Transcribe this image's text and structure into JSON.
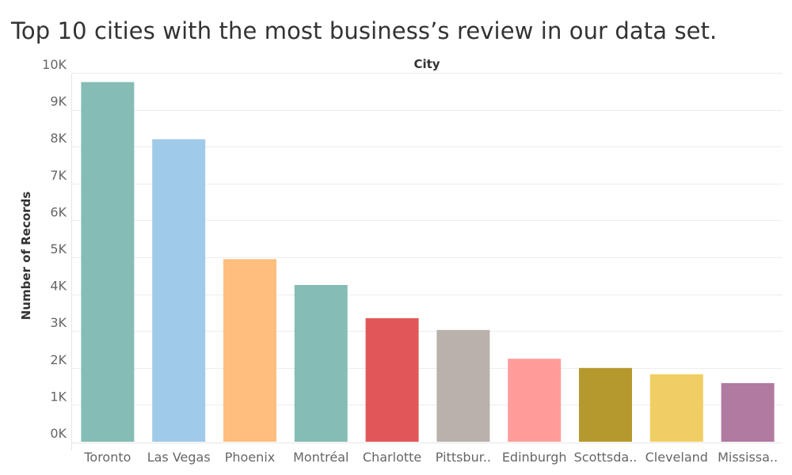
{
  "chart_data": {
    "type": "bar",
    "title": "Top 10 cities with the most business’s review in our data set.",
    "column_header": "City",
    "xlabel": "",
    "ylabel": "Number of Records",
    "categories": [
      "Toronto",
      "Las Vegas",
      "Phoenix",
      "Montréal",
      "Charlotte",
      "Pittsbur..",
      "Edinburgh",
      "Scottsda..",
      "Cleveland",
      "Mississa.."
    ],
    "values": [
      9750,
      8200,
      4950,
      4250,
      3350,
      3030,
      2250,
      2000,
      1830,
      1590
    ],
    "colors": [
      "#86bcb6",
      "#a0cbe8",
      "#ffbe7d",
      "#86bcb6",
      "#e15759",
      "#bab0ac",
      "#ff9d9a",
      "#b6992d",
      "#f1ce63",
      "#b07aa1"
    ],
    "yticks": [
      0,
      1000,
      2000,
      3000,
      4000,
      5000,
      6000,
      7000,
      8000,
      9000,
      10000
    ],
    "ytick_labels": [
      "0K",
      "1K",
      "2K",
      "3K",
      "4K",
      "5K",
      "6K",
      "7K",
      "8K",
      "9K",
      "10K"
    ],
    "ylim": [
      0,
      10000
    ],
    "grid": true
  }
}
